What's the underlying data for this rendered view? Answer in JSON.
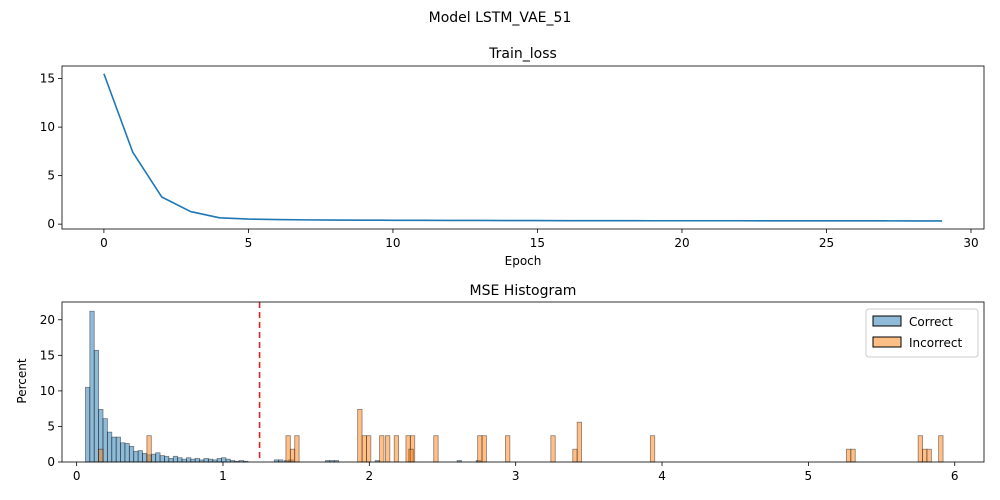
{
  "figure": {
    "suptitle": "Model LSTM_VAE_51"
  },
  "chart_data": [
    {
      "type": "line",
      "title": "Train_loss",
      "xlabel": "Epoch",
      "ylabel": "",
      "xlim": [
        -1.45,
        30.45
      ],
      "ylim": [
        -0.5,
        16.3
      ],
      "xticks": [
        0,
        5,
        10,
        15,
        20,
        25,
        30
      ],
      "yticks": [
        0,
        5,
        10,
        15
      ],
      "color": "#1f77b4",
      "grid": false,
      "series": [
        {
          "x": [
            0,
            1,
            2,
            3,
            4,
            5,
            6,
            7,
            8,
            9,
            10,
            11,
            12,
            13,
            14,
            15,
            16,
            17,
            18,
            19,
            20,
            21,
            22,
            23,
            24,
            25,
            26,
            27,
            28,
            29
          ],
          "values": [
            15.5,
            7.4,
            2.8,
            1.3,
            0.65,
            0.52,
            0.47,
            0.44,
            0.42,
            0.41,
            0.4,
            0.39,
            0.38,
            0.38,
            0.37,
            0.37,
            0.36,
            0.36,
            0.36,
            0.35,
            0.35,
            0.35,
            0.35,
            0.34,
            0.34,
            0.34,
            0.34,
            0.34,
            0.33,
            0.33
          ]
        }
      ]
    },
    {
      "type": "histogram",
      "title": "MSE Histogram",
      "xlabel": "",
      "ylabel": "Percent",
      "xlim": [
        -0.1,
        6.2
      ],
      "ylim": [
        0,
        22.5
      ],
      "xticks": [
        0,
        1,
        2,
        3,
        4,
        5,
        6
      ],
      "yticks": [
        0,
        5,
        10,
        15,
        20
      ],
      "bin_width": 0.0303,
      "threshold": {
        "x": 1.25,
        "color": "#d62728",
        "style": "dashed"
      },
      "legend": {
        "position": "upper-right"
      },
      "series": [
        {
          "name": "Correct",
          "color": "#1f77b4",
          "bins": [
            [
              0.06,
              10.5
            ],
            [
              0.09,
              21.2
            ],
            [
              0.12,
              15.7
            ],
            [
              0.15,
              7.4
            ],
            [
              0.18,
              6.1
            ],
            [
              0.21,
              4.2
            ],
            [
              0.24,
              3.5
            ],
            [
              0.27,
              3.5
            ],
            [
              0.3,
              2.7
            ],
            [
              0.33,
              2.6
            ],
            [
              0.36,
              2.2
            ],
            [
              0.39,
              1.5
            ],
            [
              0.42,
              1.6
            ],
            [
              0.45,
              1.2
            ],
            [
              0.48,
              1.0
            ],
            [
              0.51,
              1.1
            ],
            [
              0.54,
              1.3
            ],
            [
              0.57,
              0.9
            ],
            [
              0.6,
              0.8
            ],
            [
              0.63,
              0.5
            ],
            [
              0.66,
              0.8
            ],
            [
              0.69,
              0.6
            ],
            [
              0.72,
              0.4
            ],
            [
              0.75,
              0.6
            ],
            [
              0.78,
              0.4
            ],
            [
              0.81,
              0.5
            ],
            [
              0.84,
              0.3
            ],
            [
              0.87,
              0.5
            ],
            [
              0.9,
              0.4
            ],
            [
              0.93,
              0.3
            ],
            [
              0.96,
              0.5
            ],
            [
              0.99,
              0.6
            ],
            [
              1.02,
              0.4
            ],
            [
              1.05,
              0.2
            ],
            [
              1.08,
              0.1
            ],
            [
              1.11,
              0.2
            ],
            [
              1.14,
              0.1
            ],
            [
              1.35,
              0.3
            ],
            [
              1.38,
              0.3
            ],
            [
              1.42,
              0.2
            ],
            [
              1.45,
              0.3
            ],
            [
              1.7,
              0.2
            ],
            [
              1.73,
              0.2
            ],
            [
              1.76,
              0.2
            ],
            [
              2.04,
              0.2
            ],
            [
              2.6,
              0.2
            ],
            [
              2.73,
              0.2
            ]
          ]
        },
        {
          "name": "Incorrect",
          "color": "#ff7f0e",
          "bins": [
            [
              0.48,
              3.7
            ],
            [
              0.15,
              1.8
            ],
            [
              1.43,
              3.7
            ],
            [
              1.46,
              1.8
            ],
            [
              1.49,
              3.7
            ],
            [
              1.95,
              3.7
            ],
            [
              1.92,
              7.4
            ],
            [
              1.98,
              3.7
            ],
            [
              2.07,
              3.7
            ],
            [
              2.11,
              3.7
            ],
            [
              2.17,
              3.7
            ],
            [
              2.25,
              3.7
            ],
            [
              2.28,
              3.7
            ],
            [
              2.27,
              1.8
            ],
            [
              2.44,
              3.7
            ],
            [
              2.74,
              3.7
            ],
            [
              2.77,
              3.7
            ],
            [
              2.93,
              3.7
            ],
            [
              3.24,
              3.7
            ],
            [
              3.39,
              1.8
            ],
            [
              3.42,
              5.6
            ],
            [
              3.92,
              3.7
            ],
            [
              5.26,
              1.8
            ],
            [
              5.29,
              1.8
            ],
            [
              5.75,
              3.7
            ],
            [
              5.78,
              1.8
            ],
            [
              5.81,
              1.8
            ],
            [
              5.89,
              3.7
            ]
          ]
        }
      ]
    }
  ]
}
